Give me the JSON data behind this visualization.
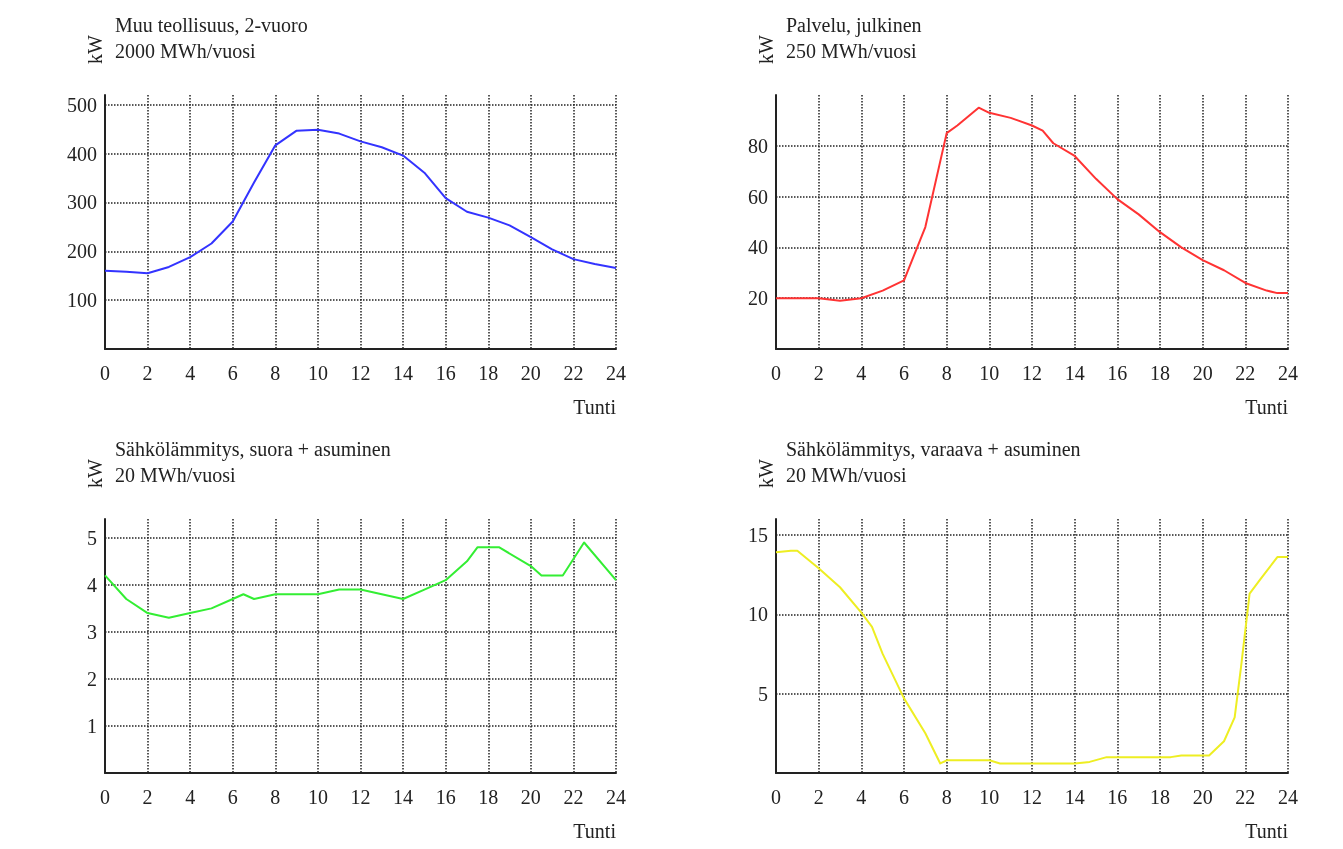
{
  "chart_data": [
    {
      "type": "line",
      "title": "Muu teollisuus, 2-vuoro",
      "subtitle": "2000 MWh/vuosi",
      "xlabel": "Tunti",
      "ylabel": "kW",
      "xlim": [
        0,
        24
      ],
      "xticks": [
        0,
        2,
        4,
        6,
        8,
        10,
        12,
        14,
        16,
        18,
        20,
        22,
        24
      ],
      "ylim": [
        0,
        520
      ],
      "yticks": [
        100,
        200,
        300,
        400,
        500
      ],
      "grid": true,
      "marker": "none",
      "line_style": "solid",
      "series": [
        {
          "color": "#3333ff",
          "x": [
            0,
            1,
            2,
            3,
            4,
            5,
            6,
            7,
            8,
            9,
            10,
            11,
            12,
            13,
            14,
            15,
            16,
            17,
            18,
            19,
            20,
            21,
            22,
            23,
            24
          ],
          "values": [
            160,
            158,
            155,
            168,
            188,
            216,
            261,
            341,
            417,
            447,
            449,
            441,
            425,
            413,
            396,
            361,
            309,
            281,
            269,
            253,
            229,
            204,
            184,
            174,
            166
          ]
        }
      ]
    },
    {
      "type": "line",
      "title": "Palvelu, julkinen",
      "subtitle": "250 MWh/vuosi",
      "xlabel": "Tunti",
      "ylabel": "kW",
      "xlim": [
        0,
        24
      ],
      "xticks": [
        0,
        2,
        4,
        6,
        8,
        10,
        12,
        14,
        16,
        18,
        20,
        22,
        24
      ],
      "ylim": [
        0,
        100
      ],
      "yticks": [
        20,
        40,
        60,
        80
      ],
      "grid": true,
      "marker": "none",
      "line_style": "solid",
      "series": [
        {
          "color": "#ff3333",
          "x": [
            0,
            2,
            3,
            4,
            5,
            6,
            7,
            8,
            8.5,
            9.5,
            10,
            11,
            12,
            12.5,
            13,
            14,
            15,
            16,
            17,
            18,
            19,
            20,
            21,
            22,
            23,
            23.5,
            24
          ],
          "values": [
            20,
            20,
            19,
            20,
            23,
            27,
            48,
            85,
            88,
            95,
            93,
            91,
            88,
            86,
            81,
            76,
            67,
            59,
            53,
            46,
            40,
            35,
            31,
            26,
            23,
            22,
            22
          ]
        }
      ]
    },
    {
      "type": "line",
      "title": "Sähkölämmitys, suora + asuminen",
      "subtitle": "20 MWh/vuosi",
      "xlabel": "Tunti",
      "ylabel": "kW",
      "xlim": [
        0,
        24
      ],
      "xticks": [
        0,
        2,
        4,
        6,
        8,
        10,
        12,
        14,
        16,
        18,
        20,
        22,
        24
      ],
      "ylim": [
        0,
        5.4
      ],
      "yticks": [
        1,
        2,
        3,
        4,
        5
      ],
      "grid": true,
      "marker": "none",
      "line_style": "solid",
      "series": [
        {
          "color": "#33ee33",
          "x": [
            0,
            1,
            2,
            3,
            4,
            5,
            6,
            6.5,
            7,
            8,
            10,
            11,
            12,
            13,
            14,
            15,
            16,
            17,
            17.5,
            18.5,
            20,
            20.5,
            21.5,
            22.5,
            24
          ],
          "values": [
            4.2,
            3.7,
            3.4,
            3.3,
            3.4,
            3.5,
            3.7,
            3.8,
            3.7,
            3.8,
            3.8,
            3.9,
            3.9,
            3.8,
            3.7,
            3.9,
            4.1,
            4.5,
            4.8,
            4.8,
            4.4,
            4.2,
            4.2,
            4.9,
            4.1
          ]
        }
      ]
    },
    {
      "type": "line",
      "title": "Sähkölämmitys, varaava + asuminen",
      "subtitle": "20 MWh/vuosi",
      "xlabel": "Tunti",
      "ylabel": "kW",
      "xlim": [
        0,
        24
      ],
      "xticks": [
        0,
        2,
        4,
        6,
        8,
        10,
        12,
        14,
        16,
        18,
        20,
        22,
        24
      ],
      "ylim": [
        0,
        16
      ],
      "yticks": [
        5,
        10,
        15
      ],
      "grid": true,
      "marker": "none",
      "line_style": "solid",
      "series": [
        {
          "color": "#eeee22",
          "x": [
            0,
            0.7,
            1,
            2,
            3,
            4,
            4.5,
            5,
            6,
            7,
            7.7,
            8,
            10,
            10.5,
            12,
            14,
            14.7,
            15.5,
            18.5,
            19,
            20.3,
            21,
            21.5,
            21.8,
            22.2,
            22.7,
            23.5,
            24
          ],
          "values": [
            13.9,
            14,
            14,
            12.9,
            11.7,
            10.1,
            9.2,
            7.5,
            4.7,
            2.5,
            0.6,
            0.8,
            0.8,
            0.6,
            0.6,
            0.6,
            0.7,
            1,
            1,
            1.1,
            1.1,
            2,
            3.5,
            6.7,
            11.3,
            12.2,
            13.6,
            13.6
          ]
        }
      ]
    }
  ]
}
